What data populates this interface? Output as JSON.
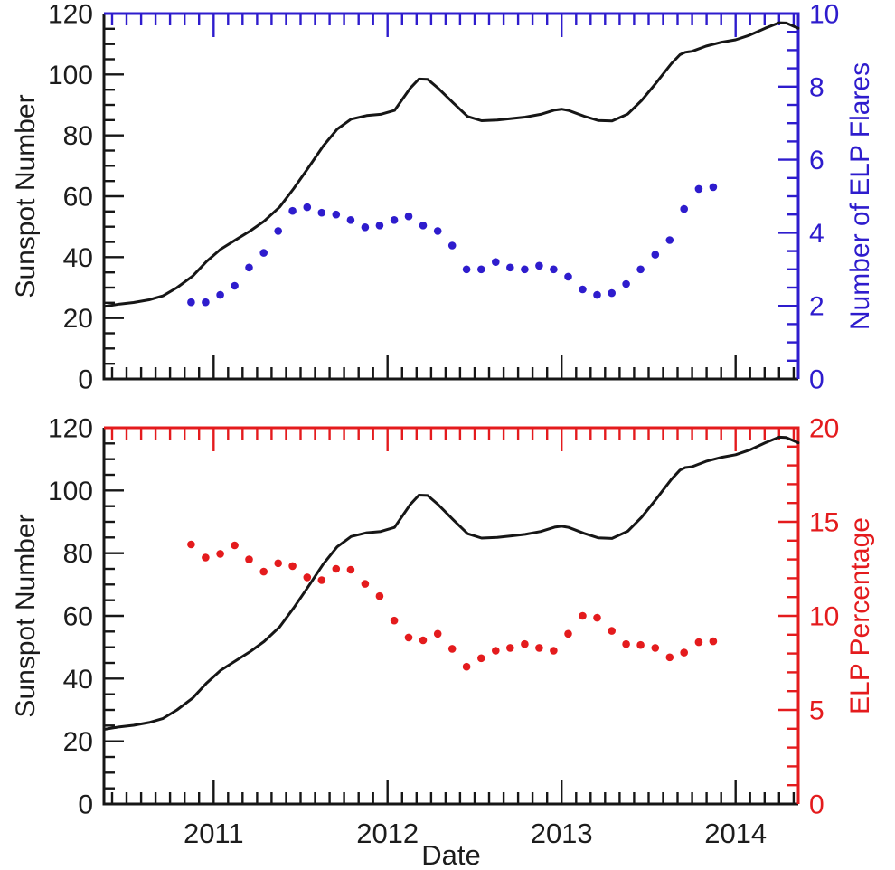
{
  "figure": {
    "background": "#ffffff",
    "xlabel": "Date"
  },
  "colors": {
    "black": "#161616",
    "blue": "#2e1ccd",
    "red": "#e41b1d",
    "text": "#1c1c1c"
  },
  "chart_data": [
    {
      "type": "line",
      "panel": "top",
      "x_range": [
        2010.37,
        2014.36
      ],
      "x_major_ticks": [
        2011,
        2012,
        2013,
        2014
      ],
      "x_tick_labels": [],
      "x_minor_per_year": 12,
      "xlabel": "",
      "left_axis": {
        "label": "Sunspot Number",
        "range": [
          0,
          120
        ],
        "major": 20,
        "minor": 5,
        "tick_labels": [
          "0",
          "20",
          "40",
          "60",
          "80",
          "100",
          "120"
        ],
        "color": "black"
      },
      "right_axis": {
        "label": "Number of ELP Flares",
        "range": [
          0,
          10
        ],
        "major": 2,
        "minor": 0.5,
        "tick_labels": [
          "0",
          "2",
          "4",
          "6",
          "8",
          "10"
        ],
        "color": "blue"
      },
      "series": [
        {
          "name": "Sunspot Number",
          "kind": "line",
          "axis": "left",
          "color": "black",
          "points": [
            [
              2010.37,
              23.8
            ],
            [
              2010.46,
              24.6
            ],
            [
              2010.54,
              25.1
            ],
            [
              2010.63,
              26.0
            ],
            [
              2010.71,
              27.3
            ],
            [
              2010.79,
              30.0
            ],
            [
              2010.88,
              33.8
            ],
            [
              2010.96,
              38.6
            ],
            [
              2011.04,
              42.6
            ],
            [
              2011.13,
              45.8
            ],
            [
              2011.21,
              48.6
            ],
            [
              2011.29,
              51.8
            ],
            [
              2011.38,
              56.5
            ],
            [
              2011.46,
              62.5
            ],
            [
              2011.54,
              69.0
            ],
            [
              2011.63,
              76.5
            ],
            [
              2011.71,
              82.0
            ],
            [
              2011.79,
              85.3
            ],
            [
              2011.88,
              86.5
            ],
            [
              2011.96,
              86.9
            ],
            [
              2012.04,
              88.2
            ],
            [
              2012.13,
              95.5
            ],
            [
              2012.18,
              98.5
            ],
            [
              2012.23,
              98.4
            ],
            [
              2012.29,
              95.5
            ],
            [
              2012.38,
              90.5
            ],
            [
              2012.46,
              86.2
            ],
            [
              2012.54,
              84.8
            ],
            [
              2012.63,
              85.0
            ],
            [
              2012.71,
              85.5
            ],
            [
              2012.79,
              86.0
            ],
            [
              2012.88,
              86.9
            ],
            [
              2012.96,
              88.3
            ],
            [
              2013.0,
              88.6
            ],
            [
              2013.04,
              88.2
            ],
            [
              2013.13,
              86.3
            ],
            [
              2013.21,
              84.9
            ],
            [
              2013.29,
              84.7
            ],
            [
              2013.38,
              87.0
            ],
            [
              2013.46,
              91.5
            ],
            [
              2013.54,
              97.0
            ],
            [
              2013.63,
              103.5
            ],
            [
              2013.68,
              106.5
            ],
            [
              2013.71,
              107.3
            ],
            [
              2013.75,
              107.6
            ],
            [
              2013.83,
              109.3
            ],
            [
              2013.92,
              110.6
            ],
            [
              2014.0,
              111.4
            ],
            [
              2014.08,
              112.9
            ],
            [
              2014.17,
              115.2
            ],
            [
              2014.25,
              117.0
            ],
            [
              2014.29,
              116.9
            ],
            [
              2014.36,
              115.2
            ]
          ]
        },
        {
          "name": "Number of ELP Flares",
          "kind": "scatter",
          "axis": "right",
          "color": "blue",
          "x": [
            2010.871,
            2010.954,
            2011.038,
            2011.121,
            2011.204,
            2011.288,
            2011.371,
            2011.454,
            2011.538,
            2011.621,
            2011.704,
            2011.788,
            2011.871,
            2011.954,
            2012.038,
            2012.121,
            2012.204,
            2012.288,
            2012.371,
            2012.454,
            2012.538,
            2012.621,
            2012.704,
            2012.788,
            2012.871,
            2012.954,
            2013.038,
            2013.121,
            2013.204,
            2013.288,
            2013.371,
            2013.454,
            2013.538,
            2013.621,
            2013.704,
            2013.788,
            2013.871
          ],
          "values": [
            2.1,
            2.1,
            2.3,
            2.55,
            3.05,
            3.45,
            4.05,
            4.6,
            4.7,
            4.55,
            4.5,
            4.35,
            4.15,
            4.2,
            4.35,
            4.45,
            4.2,
            4.05,
            3.65,
            3.0,
            3.0,
            3.2,
            3.05,
            3.0,
            3.1,
            3.0,
            2.8,
            2.45,
            2.3,
            2.35,
            2.6,
            3.0,
            3.4,
            3.8,
            4.65,
            5.2,
            5.25
          ]
        }
      ]
    },
    {
      "type": "line",
      "panel": "bottom",
      "x_range": [
        2010.37,
        2014.36
      ],
      "x_major_ticks": [
        2011,
        2012,
        2013,
        2014
      ],
      "x_tick_labels": [
        "2011",
        "2012",
        "2013",
        "2014"
      ],
      "x_minor_per_year": 12,
      "xlabel": "Date",
      "left_axis": {
        "label": "Sunspot Number",
        "range": [
          0,
          120
        ],
        "major": 20,
        "minor": 5,
        "tick_labels": [
          "0",
          "20",
          "40",
          "60",
          "80",
          "100",
          "120"
        ],
        "color": "black"
      },
      "right_axis": {
        "label": "ELP Percentage",
        "range": [
          0,
          20
        ],
        "major": 5,
        "minor": 1,
        "tick_labels": [
          "0",
          "5",
          "10",
          "15",
          "20"
        ],
        "color": "red"
      },
      "series": [
        {
          "name": "Sunspot Number",
          "kind": "line",
          "axis": "left",
          "color": "black",
          "points": [
            [
              2010.37,
              23.8
            ],
            [
              2010.46,
              24.6
            ],
            [
              2010.54,
              25.1
            ],
            [
              2010.63,
              26.0
            ],
            [
              2010.71,
              27.3
            ],
            [
              2010.79,
              30.0
            ],
            [
              2010.88,
              33.8
            ],
            [
              2010.96,
              38.6
            ],
            [
              2011.04,
              42.6
            ],
            [
              2011.13,
              45.8
            ],
            [
              2011.21,
              48.6
            ],
            [
              2011.29,
              51.8
            ],
            [
              2011.38,
              56.5
            ],
            [
              2011.46,
              62.5
            ],
            [
              2011.54,
              69.0
            ],
            [
              2011.63,
              76.5
            ],
            [
              2011.71,
              82.0
            ],
            [
              2011.79,
              85.3
            ],
            [
              2011.88,
              86.5
            ],
            [
              2011.96,
              86.9
            ],
            [
              2012.04,
              88.2
            ],
            [
              2012.13,
              95.5
            ],
            [
              2012.18,
              98.5
            ],
            [
              2012.23,
              98.4
            ],
            [
              2012.29,
              95.5
            ],
            [
              2012.38,
              90.5
            ],
            [
              2012.46,
              86.2
            ],
            [
              2012.54,
              84.8
            ],
            [
              2012.63,
              85.0
            ],
            [
              2012.71,
              85.5
            ],
            [
              2012.79,
              86.0
            ],
            [
              2012.88,
              86.9
            ],
            [
              2012.96,
              88.3
            ],
            [
              2013.0,
              88.6
            ],
            [
              2013.04,
              88.2
            ],
            [
              2013.13,
              86.3
            ],
            [
              2013.21,
              84.9
            ],
            [
              2013.29,
              84.7
            ],
            [
              2013.38,
              87.0
            ],
            [
              2013.46,
              91.5
            ],
            [
              2013.54,
              97.0
            ],
            [
              2013.63,
              103.5
            ],
            [
              2013.68,
              106.5
            ],
            [
              2013.71,
              107.3
            ],
            [
              2013.75,
              107.6
            ],
            [
              2013.83,
              109.3
            ],
            [
              2013.92,
              110.6
            ],
            [
              2014.0,
              111.4
            ],
            [
              2014.08,
              112.9
            ],
            [
              2014.17,
              115.2
            ],
            [
              2014.25,
              117.0
            ],
            [
              2014.29,
              116.9
            ],
            [
              2014.36,
              115.2
            ]
          ]
        },
        {
          "name": "ELP Percentage",
          "kind": "scatter",
          "axis": "right",
          "color": "red",
          "x": [
            2010.871,
            2010.954,
            2011.038,
            2011.121,
            2011.204,
            2011.288,
            2011.371,
            2011.454,
            2011.538,
            2011.621,
            2011.704,
            2011.788,
            2011.871,
            2011.954,
            2012.038,
            2012.121,
            2012.204,
            2012.288,
            2012.371,
            2012.454,
            2012.538,
            2012.621,
            2012.704,
            2012.788,
            2012.871,
            2012.954,
            2013.038,
            2013.121,
            2013.204,
            2013.288,
            2013.371,
            2013.454,
            2013.538,
            2013.621,
            2013.704,
            2013.788,
            2013.871
          ],
          "values": [
            13.8,
            13.1,
            13.3,
            13.75,
            13.0,
            12.35,
            12.8,
            12.65,
            12.05,
            11.9,
            12.5,
            12.45,
            11.7,
            11.05,
            9.75,
            8.85,
            8.7,
            9.05,
            8.25,
            7.3,
            7.75,
            8.15,
            8.3,
            8.5,
            8.3,
            8.15,
            9.05,
            10.0,
            9.9,
            9.2,
            8.5,
            8.45,
            8.3,
            7.8,
            8.05,
            8.6,
            8.65
          ]
        }
      ]
    }
  ]
}
